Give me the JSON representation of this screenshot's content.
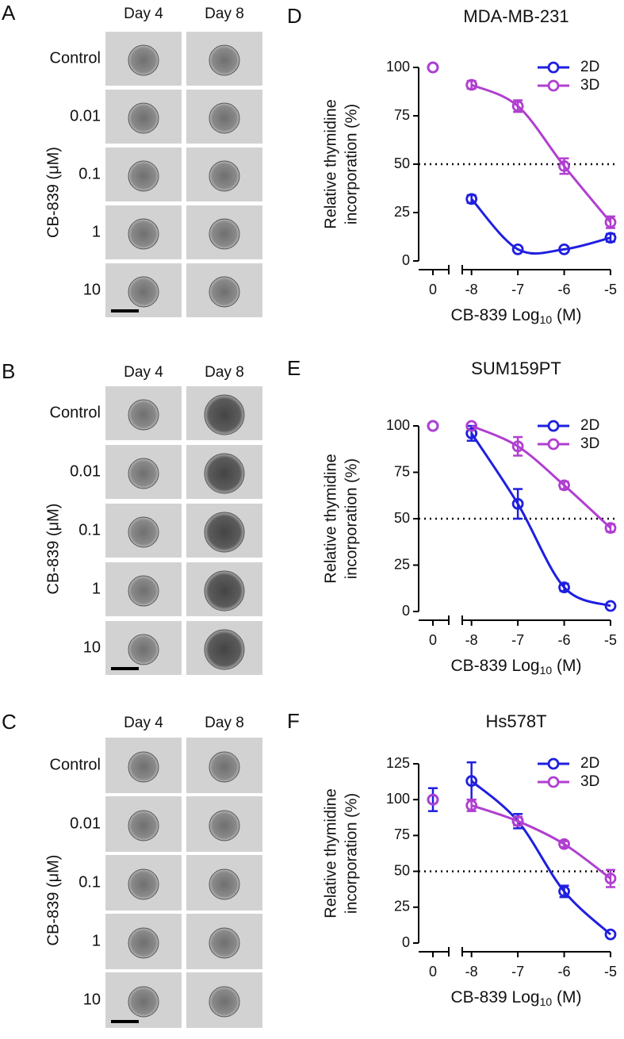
{
  "panels": [
    {
      "letter": "A",
      "columns": [
        "Day 4",
        "Day 8"
      ],
      "rows": [
        "Control",
        "0.01",
        "0.1",
        "1",
        "10"
      ],
      "ylabel": "CB-839 (μM)"
    },
    {
      "letter": "B",
      "columns": [
        "Day 4",
        "Day 8"
      ],
      "rows": [
        "Control",
        "0.01",
        "0.1",
        "1",
        "10"
      ],
      "ylabel": "CB-839 (μM)"
    },
    {
      "letter": "C",
      "columns": [
        "Day 4",
        "Day 8"
      ],
      "rows": [
        "Control",
        "0.01",
        "0.1",
        "1",
        "10"
      ],
      "ylabel": "CB-839 (μM)"
    }
  ],
  "chart_data": [
    {
      "type": "line",
      "panel": "D",
      "title": "MDA-MB-231",
      "ylabel": [
        "Relative thymidine",
        "incorporation (%)"
      ],
      "xlabel": [
        "CB-839 Log",
        "10",
        " (M)"
      ],
      "x": [
        0,
        -8,
        -7,
        -6,
        -5
      ],
      "xlim": [
        -8.2,
        -5
      ],
      "xticks": [
        0,
        -8,
        -7,
        -6,
        -5
      ],
      "ylim": [
        0,
        100
      ],
      "yticks": [
        0,
        25,
        50,
        75,
        100
      ],
      "hline": 50,
      "legend": "top-right",
      "series": [
        {
          "name": "2D",
          "color": "#1f1fe0",
          "values": [
            100,
            32,
            6,
            6,
            12
          ],
          "errors": [
            null,
            2,
            null,
            null,
            2
          ]
        },
        {
          "name": "3D",
          "color": "#b03fd0",
          "values": [
            100,
            91,
            80,
            49,
            20
          ],
          "errors": [
            null,
            2,
            3,
            4,
            3
          ]
        }
      ]
    },
    {
      "type": "line",
      "panel": "E",
      "title": "SUM159PT",
      "ylabel": [
        "Relative thymidine",
        "incorporation (%)"
      ],
      "xlabel": [
        "CB-839 Log",
        "10",
        " (M)"
      ],
      "x": [
        0,
        -8,
        -7,
        -6,
        -5
      ],
      "xlim": [
        -8.2,
        -5
      ],
      "xticks": [
        0,
        -8,
        -7,
        -6,
        -5
      ],
      "ylim": [
        0,
        100
      ],
      "yticks": [
        0,
        25,
        50,
        75,
        100
      ],
      "hline": 50,
      "legend": "top-right",
      "series": [
        {
          "name": "2D",
          "color": "#1f1fe0",
          "values": [
            100,
            96,
            58,
            13,
            3
          ],
          "errors": [
            null,
            4,
            8,
            2,
            null
          ]
        },
        {
          "name": "3D",
          "color": "#b03fd0",
          "values": [
            100,
            100,
            89,
            68,
            45
          ],
          "errors": [
            null,
            null,
            5,
            2,
            2
          ]
        }
      ]
    },
    {
      "type": "line",
      "panel": "F",
      "title": "Hs578T",
      "ylabel": [
        "Relative thymidine",
        "incorporation (%)"
      ],
      "xlabel": [
        "CB-839 Log",
        "10",
        " (M)"
      ],
      "x": [
        0,
        -8,
        -7,
        -6,
        -5
      ],
      "xlim": [
        -8.2,
        -5
      ],
      "xticks": [
        0,
        -8,
        -7,
        -6,
        -5
      ],
      "ylim": [
        0,
        125
      ],
      "yticks": [
        0,
        25,
        50,
        75,
        100,
        125
      ],
      "hline": 50,
      "legend": "top-right",
      "series": [
        {
          "name": "2D",
          "color": "#1f1fe0",
          "values": [
            100,
            113,
            85,
            36,
            6
          ],
          "errors": [
            8,
            13,
            5,
            4,
            null
          ]
        },
        {
          "name": "3D",
          "color": "#b03fd0",
          "values": [
            100,
            96,
            85,
            69,
            45
          ],
          "errors": [
            null,
            4,
            3,
            2,
            6
          ]
        }
      ]
    }
  ]
}
